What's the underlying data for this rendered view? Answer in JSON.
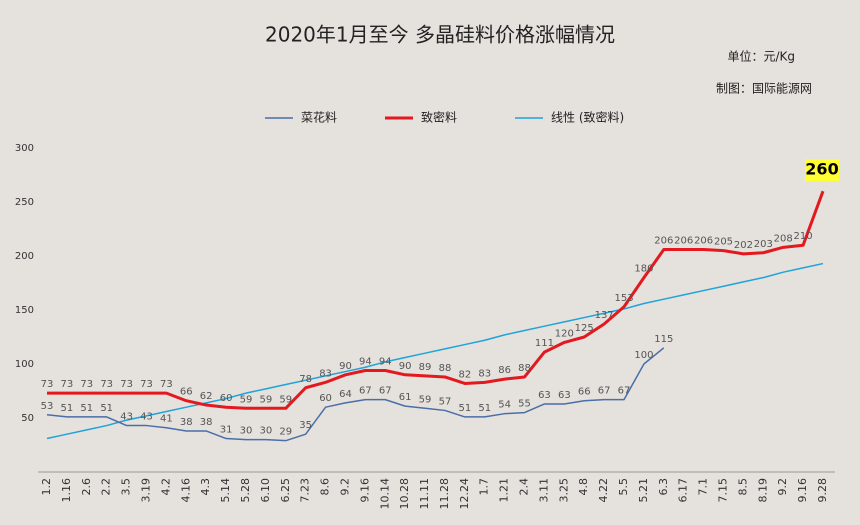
{
  "chart_data": {
    "type": "line",
    "title": "2020年1月至今  多晶硅料价格涨幅情况",
    "unit_note": "单位：元/Kg",
    "credit": "制图：国际能源网",
    "categories": [
      "1.2",
      "1.16",
      "2.6",
      "2.2",
      "3.5",
      "3.19",
      "4.2",
      "4.16",
      "4.3",
      "5.14",
      "5.28",
      "6.10",
      "6.25",
      "7.23",
      "8.6",
      "9.2",
      "9.16",
      "10.14",
      "10.28",
      "11.11",
      "11.28",
      "12.24",
      "1.7",
      "1.21",
      "2.4",
      "3.11",
      "3.25",
      "4.8",
      "4.22",
      "5.5",
      "5.21",
      "6.3",
      "6.17",
      "7.1",
      "7.15",
      "8.5",
      "8.19",
      "9.2",
      "9.16",
      "9.28"
    ],
    "series": [
      {
        "name": "菜花料",
        "color": "#4a6ea8",
        "width": 1.5,
        "labels": true,
        "values": [
          53,
          51,
          51,
          51,
          43,
          43,
          41,
          38,
          38,
          31,
          30,
          30,
          29,
          35,
          60,
          64,
          67,
          67,
          61,
          59,
          57,
          51,
          51,
          54,
          55,
          63,
          63,
          66,
          67,
          67,
          100,
          115,
          null,
          null,
          null,
          null,
          null,
          null,
          null,
          null
        ]
      },
      {
        "name": "致密料",
        "color": "#e3191f",
        "width": 3,
        "labels": true,
        "values": [
          73,
          73,
          73,
          73,
          73,
          73,
          73,
          66,
          62,
          60,
          59,
          59,
          59,
          78,
          83,
          90,
          94,
          94,
          90,
          89,
          88,
          82,
          83,
          86,
          88,
          111,
          120,
          125,
          137,
          153,
          180,
          206,
          206,
          206,
          205,
          202,
          203,
          208,
          210,
          260
        ]
      },
      {
        "name": "线性 (致密料)",
        "color": "#1fa3d9",
        "width": 1.5,
        "labels": false,
        "values": [
          31,
          35,
          39,
          43,
          48,
          52,
          56,
          60,
          64,
          68,
          73,
          77,
          81,
          85,
          89,
          93,
          97,
          102,
          106,
          110,
          114,
          118,
          122,
          127,
          131,
          135,
          139,
          143,
          147,
          151,
          156,
          160,
          164,
          168,
          172,
          176,
          180,
          185,
          189,
          193
        ]
      }
    ],
    "ylim": [
      0,
      300
    ],
    "yticks": [
      50,
      100,
      150,
      200,
      250,
      300
    ],
    "grid": false,
    "highlight_last": {
      "series": 1,
      "color": "#ffff33"
    }
  }
}
